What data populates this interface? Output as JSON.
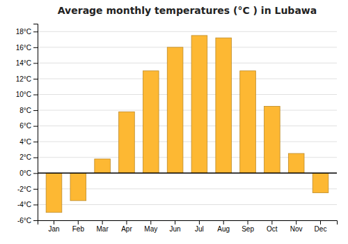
{
  "chart_data": {
    "type": "bar",
    "title": "Average monthly temperatures (°C ) in Lubawa",
    "categories": [
      "Jan",
      "Feb",
      "Mar",
      "Apr",
      "May",
      "Jun",
      "Jul",
      "Aug",
      "Sep",
      "Oct",
      "Nov",
      "Dec"
    ],
    "values": [
      -5.0,
      -3.5,
      1.8,
      7.8,
      13.0,
      16.0,
      17.5,
      17.2,
      13.0,
      8.5,
      2.5,
      -2.5
    ],
    "color": "#FDB833",
    "ylim": [
      -6,
      19
    ],
    "yticks": [
      {
        "value": -6,
        "label": "-6°C"
      },
      {
        "value": -4,
        "label": "-4°C"
      },
      {
        "value": -2,
        "label": "-2°C"
      },
      {
        "value": 0,
        "label": "0°C"
      },
      {
        "value": 2,
        "label": "2°C"
      },
      {
        "value": 4,
        "label": "4°C"
      },
      {
        "value": 6,
        "label": "6°C"
      },
      {
        "value": 8,
        "label": "8°C"
      },
      {
        "value": 10,
        "label": "10°C"
      },
      {
        "value": 12,
        "label": "12°C"
      },
      {
        "value": 14,
        "label": "14°C"
      },
      {
        "value": 16,
        "label": "16°C"
      },
      {
        "value": 18,
        "label": "18°C"
      }
    ],
    "grid": true
  }
}
